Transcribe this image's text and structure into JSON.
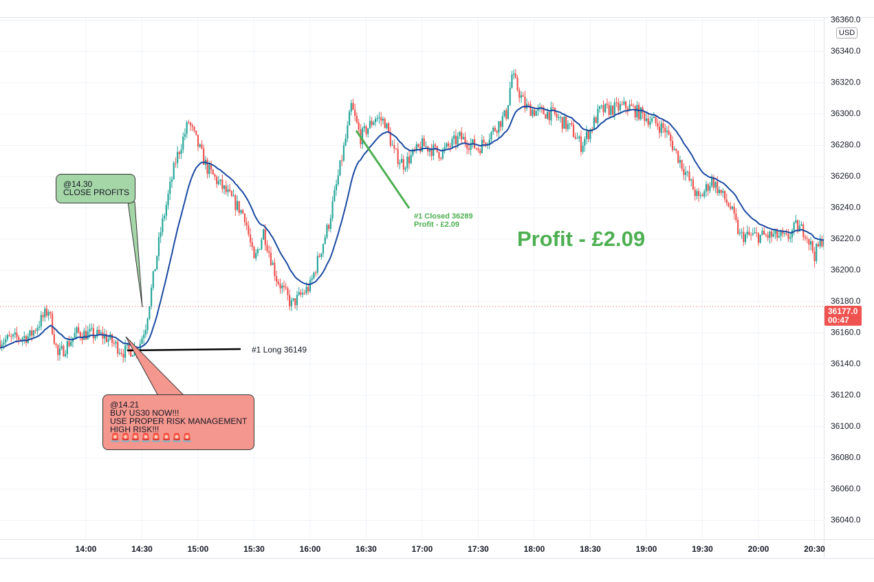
{
  "chart_data": {
    "type": "candlestick",
    "title": "",
    "instrument": "US30",
    "currency": "USD",
    "interval_minutes": 1,
    "ylim": [
      36030,
      36360
    ],
    "y_ticks": [
      36040,
      36060,
      36080,
      36100,
      36120,
      36140,
      36160,
      36180,
      36200,
      36220,
      36240,
      36260,
      36280,
      36300,
      36320,
      36340,
      36360
    ],
    "x_ticks": [
      {
        "t": 840,
        "label": "14:00"
      },
      {
        "t": 870,
        "label": "14:30"
      },
      {
        "t": 900,
        "label": "15:00"
      },
      {
        "t": 930,
        "label": "15:30"
      },
      {
        "t": 960,
        "label": "16:00"
      },
      {
        "t": 990,
        "label": "16:30"
      },
      {
        "t": 1020,
        "label": "17:00"
      },
      {
        "t": 1050,
        "label": "17:30"
      },
      {
        "t": 1080,
        "label": "18:00"
      },
      {
        "t": 1110,
        "label": "18:30"
      },
      {
        "t": 1140,
        "label": "19:00"
      },
      {
        "t": 1170,
        "label": "19:30"
      },
      {
        "t": 1200,
        "label": "20:00"
      },
      {
        "t": 1230,
        "label": "20:30"
      }
    ],
    "xlim_minutes": [
      794,
      1235
    ],
    "price_path": [
      [
        794,
        36155
      ],
      [
        810,
        36158
      ],
      [
        820,
        36175
      ],
      [
        825,
        36145
      ],
      [
        835,
        36160
      ],
      [
        850,
        36158
      ],
      [
        860,
        36148
      ],
      [
        868,
        36150
      ],
      [
        872,
        36165
      ],
      [
        880,
        36225
      ],
      [
        888,
        36270
      ],
      [
        895,
        36295
      ],
      [
        900,
        36280
      ],
      [
        905,
        36265
      ],
      [
        915,
        36250
      ],
      [
        925,
        36235
      ],
      [
        930,
        36205
      ],
      [
        935,
        36225
      ],
      [
        942,
        36195
      ],
      [
        950,
        36178
      ],
      [
        960,
        36190
      ],
      [
        970,
        36230
      ],
      [
        980,
        36290
      ],
      [
        982,
        36305
      ],
      [
        987,
        36285
      ],
      [
        995,
        36298
      ],
      [
        1000,
        36295
      ],
      [
        1005,
        36275
      ],
      [
        1010,
        36268
      ],
      [
        1020,
        36280
      ],
      [
        1030,
        36275
      ],
      [
        1040,
        36285
      ],
      [
        1050,
        36278
      ],
      [
        1055,
        36285
      ],
      [
        1065,
        36300
      ],
      [
        1068,
        36325
      ],
      [
        1075,
        36305
      ],
      [
        1080,
        36302
      ],
      [
        1090,
        36300
      ],
      [
        1100,
        36290
      ],
      [
        1105,
        36280
      ],
      [
        1110,
        36290
      ],
      [
        1115,
        36302
      ],
      [
        1130,
        36305
      ],
      [
        1140,
        36298
      ],
      [
        1150,
        36290
      ],
      [
        1160,
        36265
      ],
      [
        1168,
        36245
      ],
      [
        1175,
        36258
      ],
      [
        1185,
        36240
      ],
      [
        1190,
        36222
      ],
      [
        1200,
        36222
      ],
      [
        1210,
        36222
      ],
      [
        1215,
        36220
      ],
      [
        1220,
        36228
      ],
      [
        1225,
        36225
      ],
      [
        1230,
        36210
      ],
      [
        1235,
        36222
      ]
    ],
    "moving_average_period": 20,
    "last_price": "36177.0",
    "countdown": "00:47",
    "colors": {
      "up": "#26a69a",
      "down": "#ef5350",
      "ma": "#1848a0",
      "grid": "#f0f3fa",
      "price_line": "#ef5350"
    }
  },
  "annotations": {
    "close_callout": "@14.30\nCLOSE PROFITS",
    "buy_callout": "@14.21\nBUY US30 NOW!!!\nUSE PROPER RISK MANAGEMENT\nHIGH RISK!!!\n🚨🚨🚨🚨🚨🚨🚨🚨",
    "long_label": "#1 Long 36149",
    "closed_label": "#1 Closed 36289\nProfit - £2.09",
    "profit_big": "Profit - £2.09"
  },
  "axis": {
    "currency_badge": "USD"
  }
}
